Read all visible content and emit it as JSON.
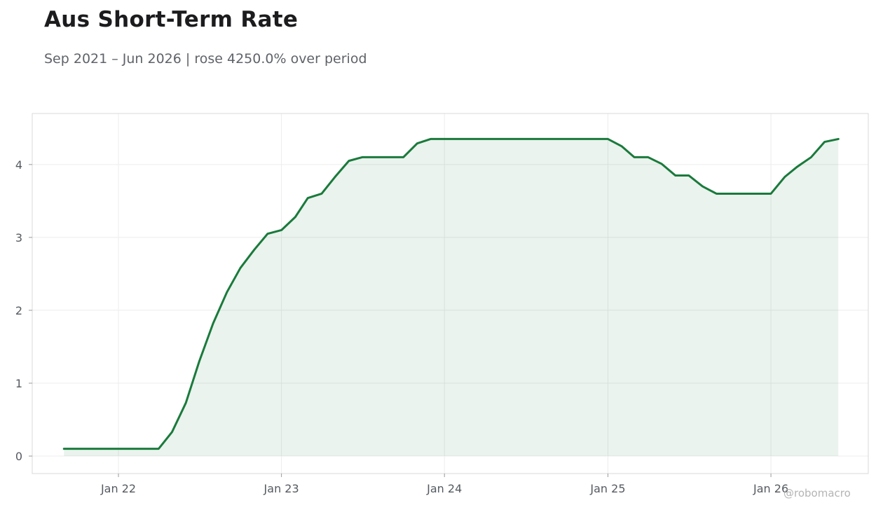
{
  "title": "Aus Short-Term Rate",
  "subtitle": "Sep 2021 – Jun 2026 | rose 4250.0% over period",
  "watermark": "@robomacro",
  "colors": {
    "line": "#1a7a3c",
    "fill": "#1a7a3c",
    "grid": "#ececec",
    "frame": "#d9d9d9"
  },
  "chart_data": {
    "type": "area",
    "x_type": "date",
    "ylim": [
      -0.24,
      4.7
    ],
    "xlim": [
      "2021-06-22",
      "2026-08-07"
    ],
    "yticks": [
      0,
      1,
      2,
      3,
      4
    ],
    "xticks": [
      {
        "date": "2022-01-01",
        "label": "Jan 22"
      },
      {
        "date": "2023-01-01",
        "label": "Jan 23"
      },
      {
        "date": "2024-01-01",
        "label": "Jan 24"
      },
      {
        "date": "2025-01-01",
        "label": "Jan 25"
      },
      {
        "date": "2026-01-01",
        "label": "Jan 26"
      }
    ],
    "grid": true,
    "series": [
      {
        "points": [
          [
            "2021-09-01",
            0.1
          ],
          [
            "2021-10-01",
            0.1
          ],
          [
            "2021-11-01",
            0.1
          ],
          [
            "2021-12-01",
            0.1
          ],
          [
            "2022-01-01",
            0.1
          ],
          [
            "2022-02-01",
            0.1
          ],
          [
            "2022-03-01",
            0.1
          ],
          [
            "2022-04-01",
            0.1
          ],
          [
            "2022-05-01",
            0.33
          ],
          [
            "2022-06-01",
            0.73
          ],
          [
            "2022-07-01",
            1.3
          ],
          [
            "2022-08-01",
            1.82
          ],
          [
            "2022-09-01",
            2.25
          ],
          [
            "2022-10-01",
            2.58
          ],
          [
            "2022-11-01",
            2.83
          ],
          [
            "2022-12-01",
            3.05
          ],
          [
            "2023-01-01",
            3.1
          ],
          [
            "2023-02-01",
            3.28
          ],
          [
            "2023-03-01",
            3.54
          ],
          [
            "2023-04-01",
            3.6
          ],
          [
            "2023-05-01",
            3.83
          ],
          [
            "2023-06-01",
            4.05
          ],
          [
            "2023-07-01",
            4.1
          ],
          [
            "2023-08-01",
            4.1
          ],
          [
            "2023-09-01",
            4.1
          ],
          [
            "2023-10-01",
            4.1
          ],
          [
            "2023-11-01",
            4.29
          ],
          [
            "2023-12-01",
            4.35
          ],
          [
            "2024-01-01",
            4.35
          ],
          [
            "2024-02-01",
            4.35
          ],
          [
            "2024-03-01",
            4.35
          ],
          [
            "2024-04-01",
            4.35
          ],
          [
            "2024-05-01",
            4.35
          ],
          [
            "2024-06-01",
            4.35
          ],
          [
            "2024-07-01",
            4.35
          ],
          [
            "2024-08-01",
            4.35
          ],
          [
            "2024-09-01",
            4.35
          ],
          [
            "2024-10-01",
            4.35
          ],
          [
            "2024-11-01",
            4.35
          ],
          [
            "2024-12-01",
            4.35
          ],
          [
            "2025-01-01",
            4.35
          ],
          [
            "2025-02-01",
            4.25
          ],
          [
            "2025-03-01",
            4.1
          ],
          [
            "2025-04-01",
            4.1
          ],
          [
            "2025-05-01",
            4.01
          ],
          [
            "2025-06-01",
            3.85
          ],
          [
            "2025-07-01",
            3.85
          ],
          [
            "2025-08-01",
            3.7
          ],
          [
            "2025-09-01",
            3.6
          ],
          [
            "2025-10-01",
            3.6
          ],
          [
            "2025-11-01",
            3.6
          ],
          [
            "2025-12-01",
            3.6
          ],
          [
            "2026-01-01",
            3.6
          ],
          [
            "2026-02-01",
            3.83
          ],
          [
            "2026-03-01",
            3.97
          ],
          [
            "2026-04-01",
            4.1
          ],
          [
            "2026-05-01",
            4.31
          ],
          [
            "2026-06-01",
            4.35
          ]
        ]
      }
    ]
  }
}
